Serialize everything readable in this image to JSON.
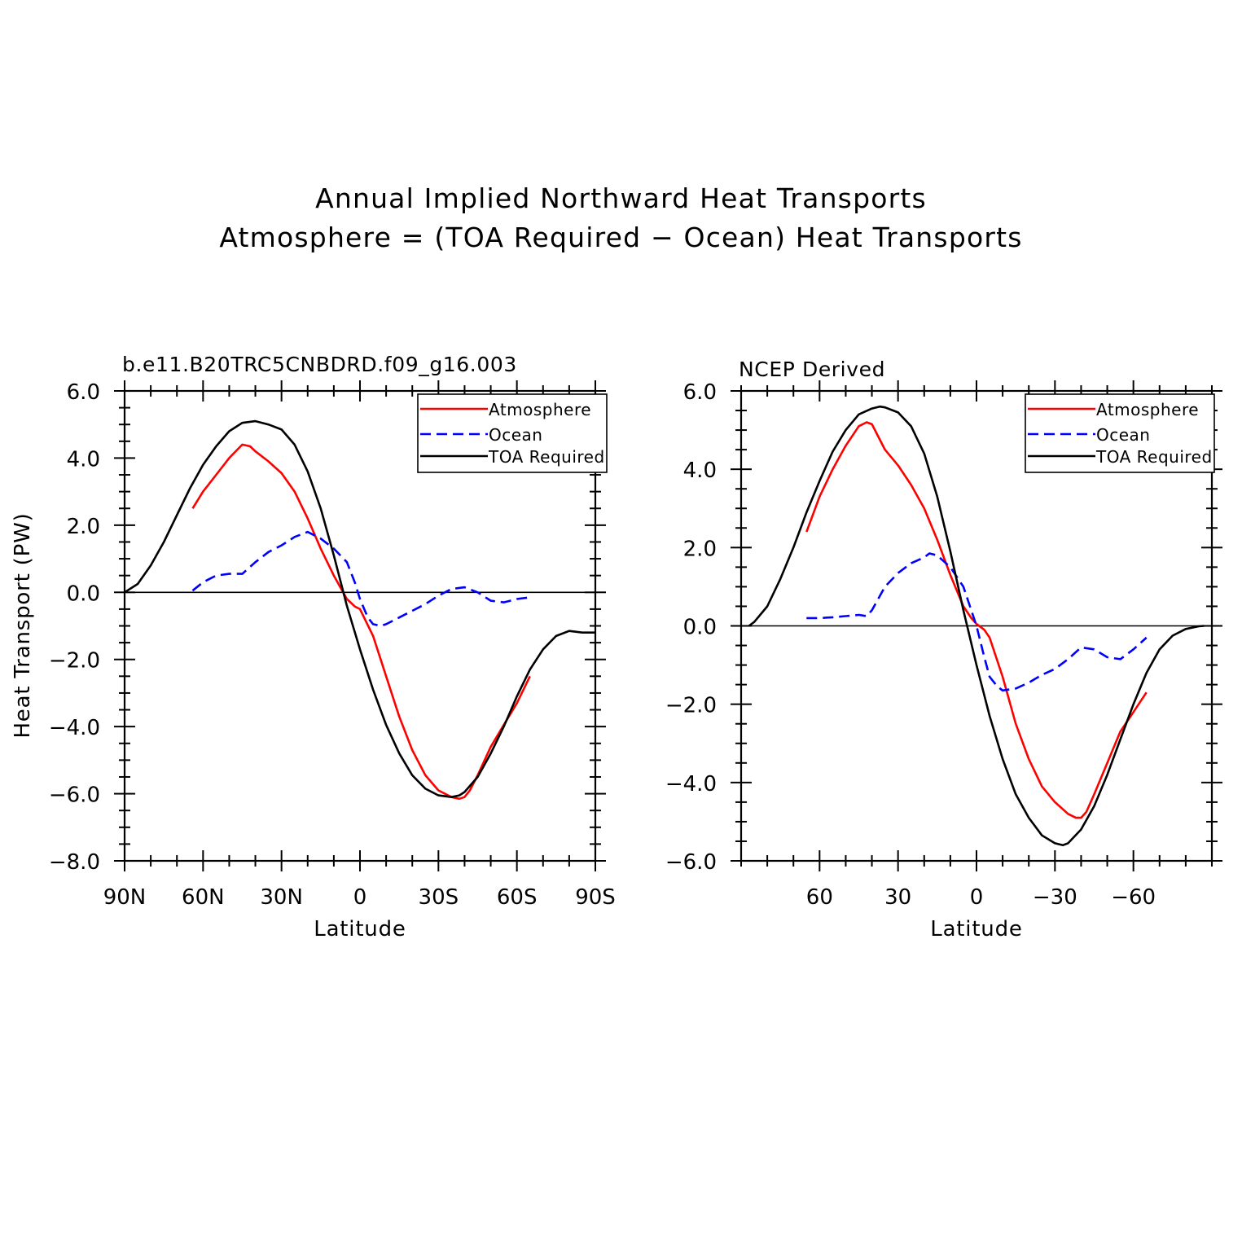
{
  "figure": {
    "title_line1": "Annual Implied Northward Heat Transports",
    "title_line2": "Atmosphere = (TOA Required − Ocean) Heat Transports"
  },
  "colors": {
    "atmosphere": "#ff0000",
    "ocean": "#0000ff",
    "toa": "#000000"
  },
  "chart_data": [
    {
      "type": "line",
      "title": "b.e11.B20TRC5CNBDRD.f09_g16.003",
      "xlabel": "Latitude",
      "ylabel": "Heat Transport (PW)",
      "x_direction": "north-to-south",
      "xlim": [
        90,
        -90
      ],
      "ylim": [
        -8,
        6
      ],
      "xticks": [
        90,
        60,
        30,
        0,
        -30,
        -60,
        -90
      ],
      "xtick_labels": [
        "90N",
        "60N",
        "30N",
        "0",
        "30S",
        "60S",
        "90S"
      ],
      "yticks": [
        6,
        4,
        2,
        0,
        -2,
        -4,
        -6,
        -8
      ],
      "ytick_labels": [
        "6.0",
        "4.0",
        "2.0",
        "0.0",
        "−2.0",
        "−4.0",
        "−6.0",
        "−8.0"
      ],
      "zero_line": true,
      "legend_position": "top-right",
      "legend_entries": [
        "Atmosphere",
        "Ocean",
        "TOA Required"
      ],
      "series": [
        {
          "name": "Atmosphere",
          "style": "solid",
          "color_key": "atmosphere",
          "x": [
            64,
            60,
            55,
            50,
            45,
            42,
            40,
            35,
            30,
            25,
            20,
            15,
            10,
            5,
            2,
            0,
            -5,
            -10,
            -15,
            -20,
            -25,
            -30,
            -35,
            -38,
            -40,
            -42,
            -45,
            -50,
            -55,
            -60,
            -65
          ],
          "y": [
            2.5,
            3.0,
            3.5,
            4.0,
            4.4,
            4.35,
            4.2,
            3.9,
            3.55,
            3.0,
            2.2,
            1.3,
            0.5,
            -0.2,
            -0.42,
            -0.5,
            -1.3,
            -2.5,
            -3.7,
            -4.7,
            -5.45,
            -5.9,
            -6.1,
            -6.15,
            -6.1,
            -5.9,
            -5.45,
            -4.6,
            -3.95,
            -3.3,
            -2.5
          ]
        },
        {
          "name": "Ocean",
          "style": "dashed",
          "color_key": "ocean",
          "x": [
            64,
            60,
            55,
            50,
            45,
            40,
            35,
            30,
            25,
            20,
            15,
            10,
            5,
            2,
            0,
            -3,
            -5,
            -8,
            -10,
            -15,
            -20,
            -25,
            -30,
            -35,
            -40,
            -45,
            -50,
            -55,
            -60,
            -65
          ],
          "y": [
            0.05,
            0.3,
            0.5,
            0.55,
            0.55,
            0.9,
            1.2,
            1.4,
            1.65,
            1.8,
            1.6,
            1.3,
            0.9,
            0.3,
            -0.2,
            -0.75,
            -0.95,
            -1.0,
            -0.95,
            -0.75,
            -0.55,
            -0.35,
            -0.1,
            0.1,
            0.15,
            0.0,
            -0.25,
            -0.3,
            -0.2,
            -0.15
          ]
        },
        {
          "name": "TOA Required",
          "style": "solid",
          "color_key": "toa",
          "x": [
            90,
            85,
            80,
            75,
            70,
            65,
            60,
            55,
            50,
            45,
            40,
            35,
            30,
            25,
            20,
            15,
            10,
            5,
            0,
            -5,
            -10,
            -15,
            -20,
            -25,
            -30,
            -35,
            -38,
            -40,
            -45,
            -50,
            -55,
            -60,
            -65,
            -70,
            -75,
            -80,
            -85,
            -90
          ],
          "y": [
            0.0,
            0.25,
            0.8,
            1.5,
            2.3,
            3.1,
            3.8,
            4.35,
            4.8,
            5.05,
            5.1,
            5.0,
            4.85,
            4.4,
            3.6,
            2.5,
            1.1,
            -0.4,
            -1.7,
            -2.9,
            -3.95,
            -4.8,
            -5.45,
            -5.85,
            -6.05,
            -6.1,
            -6.05,
            -5.95,
            -5.5,
            -4.8,
            -4.0,
            -3.1,
            -2.3,
            -1.7,
            -1.3,
            -1.15,
            -1.2,
            -1.2
          ]
        }
      ]
    },
    {
      "type": "line",
      "title": "NCEP Derived",
      "xlabel": "Latitude",
      "ylabel": "",
      "x_direction": "north-to-south",
      "xlim": [
        90,
        -90
      ],
      "ylim": [
        -6,
        6
      ],
      "xticks": [
        60,
        30,
        0,
        -30,
        -60
      ],
      "xtick_labels": [
        "60",
        "30",
        "0",
        "−30",
        "−60"
      ],
      "yticks": [
        6,
        4,
        2,
        0,
        -2,
        -4,
        -6
      ],
      "ytick_labels": [
        "6.0",
        "4.0",
        "2.0",
        "0.0",
        "−2.0",
        "−4.0",
        "−6.0"
      ],
      "zero_line": true,
      "legend_position": "top-right",
      "legend_entries": [
        "Atmosphere",
        "Ocean",
        "TOA Required"
      ],
      "series": [
        {
          "name": "Atmosphere",
          "style": "solid",
          "color_key": "atmosphere",
          "x": [
            65,
            60,
            55,
            50,
            45,
            42,
            40,
            35,
            30,
            25,
            20,
            15,
            10,
            5,
            2,
            0,
            -3,
            -5,
            -10,
            -15,
            -20,
            -25,
            -30,
            -35,
            -38,
            -40,
            -42,
            -45,
            -50,
            -55,
            -60,
            -65
          ],
          "y": [
            2.4,
            3.3,
            4.0,
            4.6,
            5.1,
            5.2,
            5.15,
            4.5,
            4.1,
            3.6,
            3.0,
            2.2,
            1.3,
            0.5,
            0.2,
            0.05,
            -0.1,
            -0.3,
            -1.3,
            -2.5,
            -3.4,
            -4.1,
            -4.5,
            -4.8,
            -4.9,
            -4.9,
            -4.75,
            -4.3,
            -3.5,
            -2.7,
            -2.2,
            -1.7
          ]
        },
        {
          "name": "Ocean",
          "style": "dashed",
          "color_key": "ocean",
          "x": [
            65,
            60,
            55,
            50,
            45,
            42,
            40,
            35,
            30,
            25,
            20,
            18,
            15,
            10,
            5,
            2,
            0,
            -3,
            -5,
            -8,
            -10,
            -15,
            -20,
            -25,
            -30,
            -35,
            -40,
            -45,
            -50,
            -55,
            -60,
            -65
          ],
          "y": [
            0.2,
            0.2,
            0.22,
            0.25,
            0.28,
            0.25,
            0.4,
            1.0,
            1.35,
            1.6,
            1.75,
            1.85,
            1.8,
            1.5,
            1.0,
            0.4,
            0.0,
            -0.8,
            -1.3,
            -1.55,
            -1.65,
            -1.6,
            -1.45,
            -1.25,
            -1.1,
            -0.85,
            -0.55,
            -0.6,
            -0.8,
            -0.85,
            -0.6,
            -0.3
          ]
        },
        {
          "name": "TOA Required",
          "style": "solid",
          "color_key": "toa",
          "x": [
            87,
            85,
            80,
            75,
            70,
            65,
            60,
            55,
            50,
            45,
            40,
            37,
            35,
            30,
            25,
            20,
            15,
            10,
            5,
            0,
            -5,
            -10,
            -15,
            -20,
            -25,
            -30,
            -33,
            -35,
            -40,
            -45,
            -50,
            -55,
            -60,
            -65,
            -70,
            -75,
            -80,
            -85,
            -87
          ],
          "y": [
            0.0,
            0.1,
            0.5,
            1.2,
            2.0,
            2.9,
            3.7,
            4.45,
            5.0,
            5.4,
            5.55,
            5.6,
            5.58,
            5.45,
            5.1,
            4.4,
            3.3,
            1.9,
            0.4,
            -1.0,
            -2.3,
            -3.4,
            -4.3,
            -4.9,
            -5.35,
            -5.55,
            -5.6,
            -5.55,
            -5.2,
            -4.6,
            -3.8,
            -2.9,
            -2.0,
            -1.2,
            -0.6,
            -0.25,
            -0.08,
            -0.01,
            0.0
          ]
        }
      ]
    }
  ]
}
